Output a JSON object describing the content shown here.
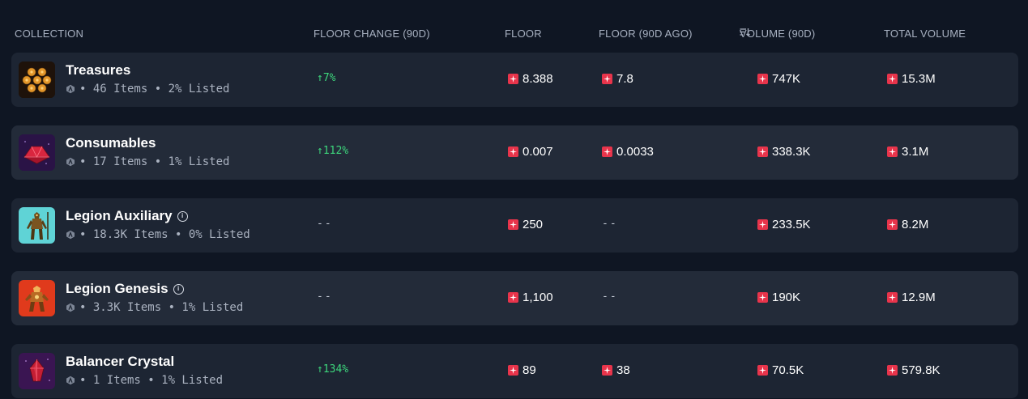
{
  "header": {
    "collection": "COLLECTION",
    "floor_change": "FLOOR CHANGE (90D)",
    "floor": "FLOOR",
    "floor_ago": "FLOOR (90D AGO)",
    "volume": "VOLUME (90D)",
    "total_volume": "TOTAL VOLUME"
  },
  "rows": [
    {
      "name": "Treasures",
      "meta": "• 46 Items • 2% Listed",
      "change": "↑7%",
      "floor": "8.388",
      "floor_ago": "7.8",
      "volume": "747K",
      "total": "15.3M"
    },
    {
      "name": "Consumables",
      "meta": "• 17 Items • 1% Listed",
      "change": "↑112%",
      "floor": "0.007",
      "floor_ago": "0.0033",
      "volume": "338.3K",
      "total": "3.1M"
    },
    {
      "name": "Legion Auxiliary",
      "meta": "• 18.3K Items • 0% Listed",
      "change": "--",
      "floor": "250",
      "floor_ago": "--",
      "volume": "233.5K",
      "total": "8.2M"
    },
    {
      "name": "Legion Genesis",
      "meta": "• 3.3K Items • 1% Listed",
      "change": "--",
      "floor": "1,100",
      "floor_ago": "--",
      "volume": "190K",
      "total": "12.9M"
    },
    {
      "name": "Balancer Crystal",
      "meta": "• 1 Items • 1% Listed",
      "change": "↑134%",
      "floor": "89",
      "floor_ago": "38",
      "volume": "70.5K",
      "total": "579.8K"
    }
  ],
  "colors": {
    "background": "#0f1623",
    "row": "#1d2533",
    "positive": "#3dd67c",
    "magic": "#e8344b"
  },
  "icons": {
    "currency": "magic-token-icon",
    "chain": "arbitrum-icon",
    "sort": "sort-descending-icon",
    "info": "info-icon"
  }
}
